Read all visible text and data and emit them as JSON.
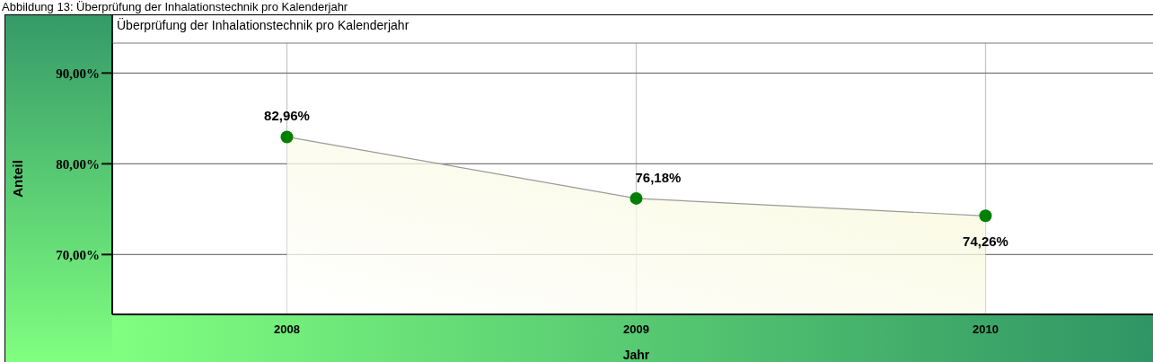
{
  "chart_data": {
    "type": "area",
    "title": "Überprüfung der Inhalationstechnik pro Kalenderjahr",
    "xlabel": "Jahr",
    "ylabel": "Anteil",
    "annotations": [
      "Abbildung 13: Überprüfung der Inhalationstechnik pro Kalenderjahr"
    ],
    "categories": [
      "2008",
      "2009",
      "2010"
    ],
    "series": [
      {
        "color": "#f7f7d4",
        "values": [
          82.96,
          76.18,
          74.26
        ],
        "value_labels": [
          "82,96%",
          "76,18%",
          "74,26%"
        ]
      }
    ],
    "ylim": [
      63.4,
      93.3
    ],
    "yticks": [
      {
        "value": 70,
        "label": "70,00%"
      },
      {
        "value": 80,
        "label": "80,00%"
      },
      {
        "value": 90,
        "label": "90,00%"
      }
    ],
    "grid": true,
    "marker": "circle",
    "line_style": "solid"
  }
}
